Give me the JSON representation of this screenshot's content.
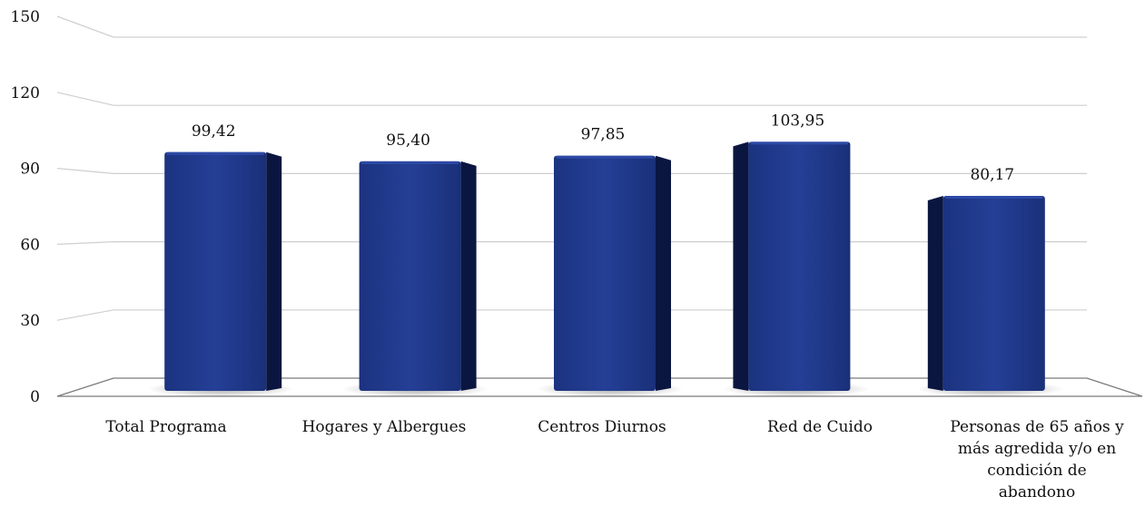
{
  "chart_data": {
    "type": "bar",
    "title": "",
    "xlabel": "",
    "ylabel": "",
    "ylim": [
      0,
      150
    ],
    "yticks": [
      0,
      30,
      60,
      90,
      120,
      150
    ],
    "grid": true,
    "style": "3d-column",
    "categories": [
      [
        "Total Programa"
      ],
      [
        "Hogares y Albergues"
      ],
      [
        "Centros Diurnos"
      ],
      [
        "Red de Cuido"
      ],
      [
        "Personas de 65 años y",
        "más agredida y/o en",
        "condición de",
        "abandono"
      ]
    ],
    "values": [
      99.42,
      95.4,
      97.85,
      103.95,
      80.17
    ],
    "value_labels": [
      "99,42",
      "95,40",
      "97,85",
      "103,95",
      "80,17"
    ],
    "colors": {
      "bar_front": "#1f3a8c",
      "bar_side": "#0b1640",
      "grid": "#cfcfcf",
      "axis": "#7a7a7a"
    }
  }
}
